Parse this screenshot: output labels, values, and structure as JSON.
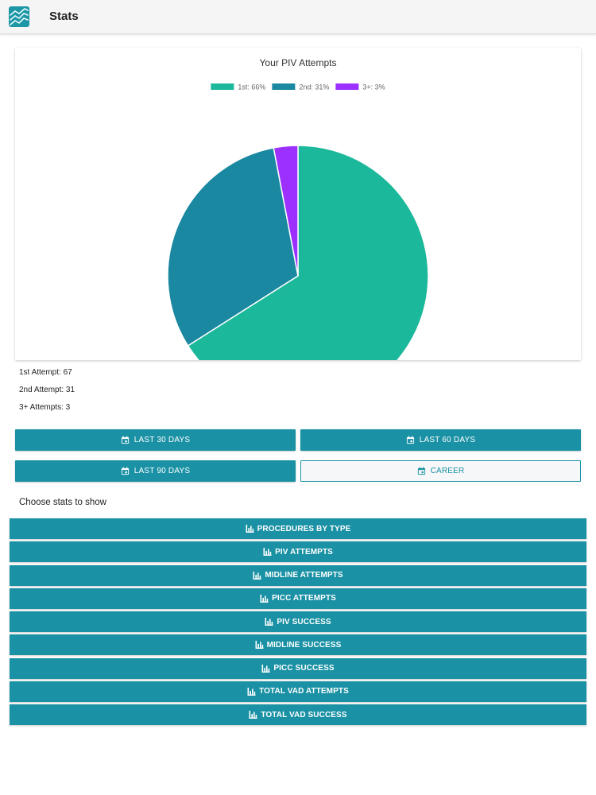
{
  "app": {
    "title": "Stats",
    "logo_icon": "trend-chart-icon"
  },
  "chart_data": {
    "type": "pie",
    "title": "Your PIV Attempts",
    "legend_position": "top",
    "slices": [
      {
        "name": "1st: 66%",
        "value": 66,
        "color": "#1cb89b"
      },
      {
        "name": "2nd: 31%",
        "value": 31,
        "color": "#1a88a0"
      },
      {
        "name": "3+: 3%",
        "value": 3,
        "color": "#9b30ff"
      }
    ]
  },
  "summary": {
    "first": "1st Attempt: 67",
    "second": "2nd Attempt: 31",
    "third": "3+ Attempts: 3"
  },
  "ranges": [
    {
      "label": "LAST 30 DAYS",
      "icon": "calendar-icon",
      "selected": false
    },
    {
      "label": "LAST 60 DAYS",
      "icon": "calendar-icon",
      "selected": false
    },
    {
      "label": "LAST 90 DAYS",
      "icon": "calendar-icon",
      "selected": false
    },
    {
      "label": "CAREER",
      "icon": "calendar-icon",
      "selected": true
    }
  ],
  "choose_label": "Choose stats to show",
  "stat_buttons": [
    {
      "label": "PROCEDURES BY TYPE",
      "icon": "bar-chart-icon"
    },
    {
      "label": "PIV ATTEMPTS",
      "icon": "bar-chart-icon"
    },
    {
      "label": "MIDLINE ATTEMPTS",
      "icon": "bar-chart-icon"
    },
    {
      "label": "PICC ATTEMPTS",
      "icon": "bar-chart-icon"
    },
    {
      "label": "PIV SUCCESS",
      "icon": "bar-chart-icon"
    },
    {
      "label": "MIDLINE SUCCESS",
      "icon": "bar-chart-icon"
    },
    {
      "label": "PICC SUCCESS",
      "icon": "bar-chart-icon"
    },
    {
      "label": "TOTAL VAD ATTEMPTS",
      "icon": "bar-chart-icon"
    },
    {
      "label": "TOTAL VAD SUCCESS",
      "icon": "bar-chart-icon"
    }
  ]
}
